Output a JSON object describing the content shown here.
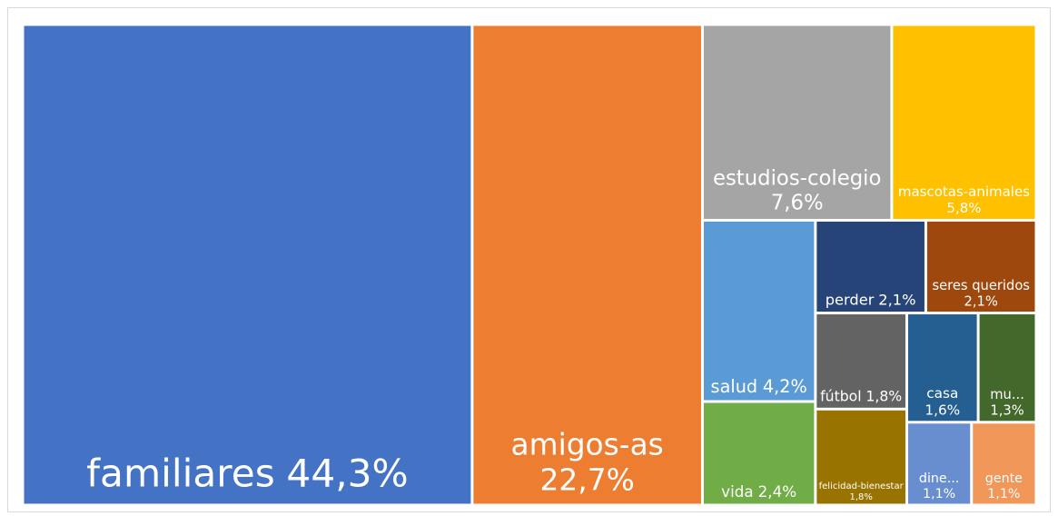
{
  "chart_data": {
    "type": "treemap",
    "categories": [
      "familiares",
      "amigos-as",
      "estudios-colegio",
      "mascotas-animales",
      "salud",
      "vida",
      "perder",
      "seres queridos",
      "fútbol",
      "felicidad-bienestar",
      "casa",
      "mu...",
      "dine...",
      "gente"
    ],
    "values": [
      44.3,
      22.7,
      7.6,
      5.8,
      4.2,
      2.4,
      2.1,
      2.1,
      1.8,
      1.8,
      1.6,
      1.3,
      1.1,
      1.1
    ],
    "value_labels": [
      "44,3%",
      "22,7%",
      "7,6%",
      "5,8%",
      "4,2%",
      "2,4%",
      "2,1%",
      "2,1%",
      "1,8%",
      "1,8%",
      "1,6%",
      "1,3%",
      "1,1%",
      "1,1%"
    ],
    "colors": [
      "#4472c4",
      "#ed7d31",
      "#a5a5a5",
      "#ffc000",
      "#5b9bd5",
      "#70ad47",
      "#264478",
      "#9e480e",
      "#636363",
      "#997300",
      "#255e91",
      "#43682b",
      "#698ed0",
      "#f1975a"
    ]
  }
}
